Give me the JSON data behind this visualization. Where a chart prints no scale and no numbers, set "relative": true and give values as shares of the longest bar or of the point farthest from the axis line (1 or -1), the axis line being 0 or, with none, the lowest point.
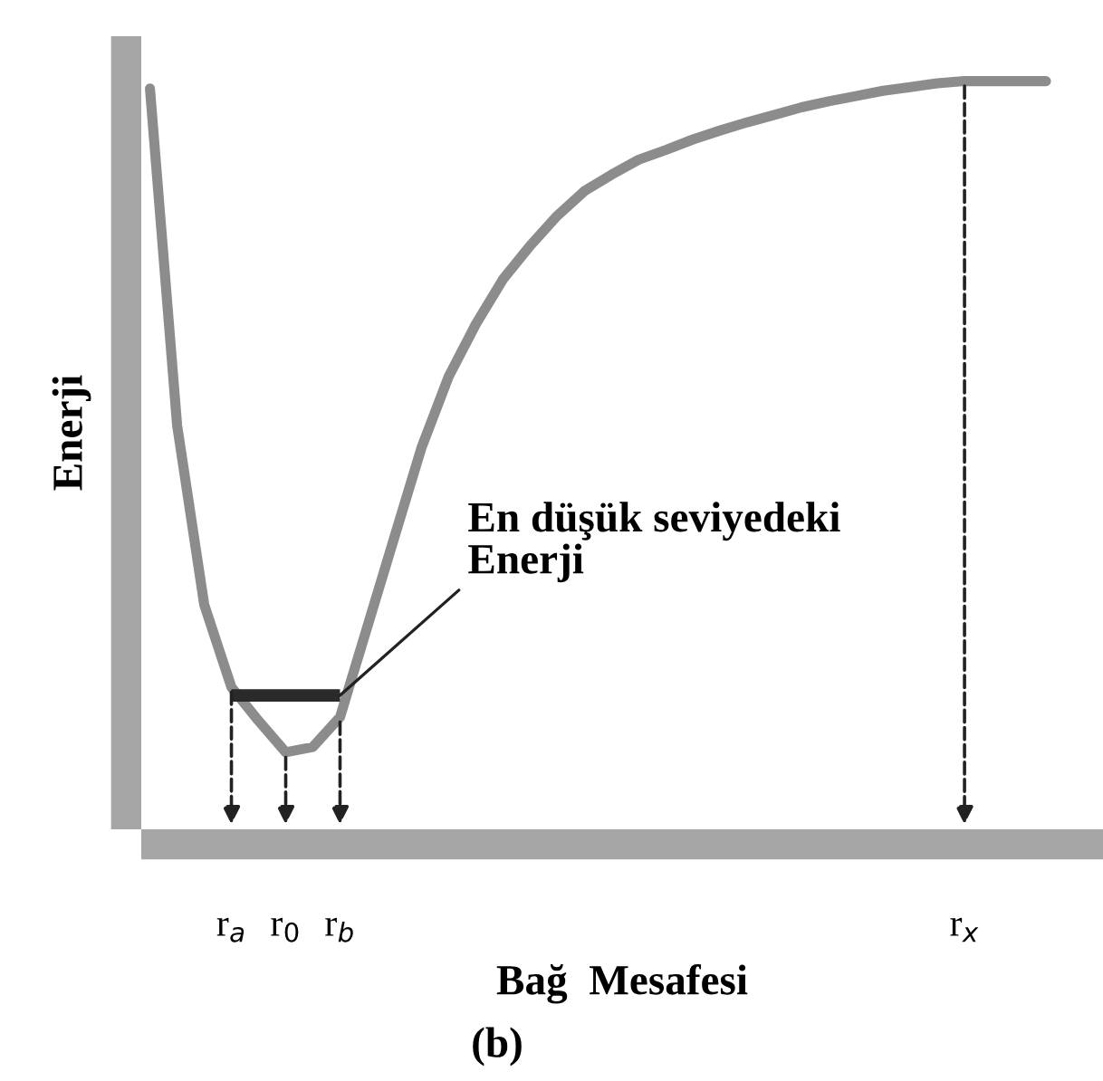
{
  "chart_data": {
    "type": "line",
    "relative": true,
    "ylabel": "Enerji",
    "xlabel": "Bağ  Mesafesi",
    "categories": [
      null,
      null,
      null,
      "r$_{a}$",
      null,
      "r$_{0}$",
      null,
      "r$_{b}$",
      null,
      null,
      null,
      null,
      null,
      null,
      null,
      null,
      null,
      null,
      null,
      null,
      null,
      null,
      null,
      null,
      null,
      null,
      null,
      null,
      null,
      null,
      "r$_{x}$",
      null,
      null,
      null
    ],
    "series": [
      {
        "color": "#8c8c8c",
        "values": [
          0.99,
          0.54,
          0.3,
          0.19,
          0.145,
          0.103,
          0.11,
          0.15,
          0.27,
          0.39,
          0.51,
          0.605,
          0.675,
          0.735,
          0.78,
          0.82,
          0.853,
          0.875,
          0.895,
          0.908,
          0.922,
          0.934,
          0.945,
          0.955,
          0.965,
          0.973,
          0.98,
          0.987,
          0.992,
          0.997,
          1.0,
          1.0,
          1.0,
          1.0
        ]
      },
      {
        "color": "#2a2a2a",
        "values": [
          null,
          null,
          null,
          0.179,
          0.179,
          0.179,
          0.179,
          0.179,
          null,
          null,
          null,
          null,
          null,
          null,
          null,
          null,
          null,
          null,
          null,
          null,
          null,
          null,
          null,
          null,
          null,
          null,
          null,
          null,
          null,
          null,
          null,
          null,
          null,
          null
        ]
      }
    ],
    "annotations": [
      "En düşük seviyedeki\nEnerji",
      "(b)"
    ],
    "grid": false,
    "marker": "none",
    "line_style": "solid"
  }
}
